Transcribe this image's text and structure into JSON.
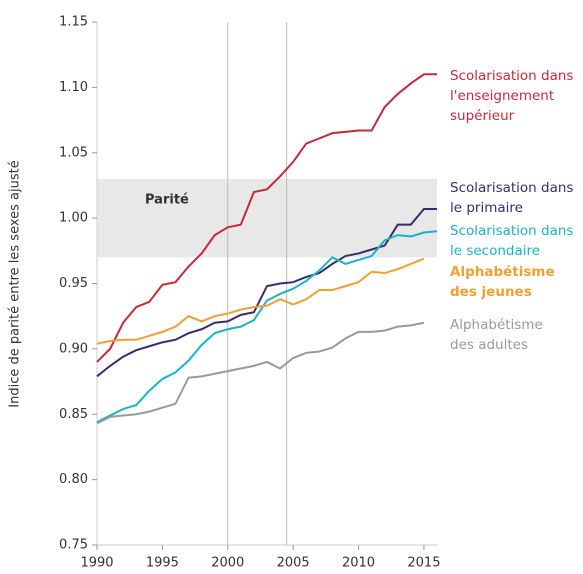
{
  "chart_data": {
    "type": "line",
    "y_label": "Indice de parité entre les sexes ajusté",
    "band": {
      "range": [
        0.97,
        1.03
      ],
      "label": "Parité",
      "color": "#e8e8e8"
    },
    "vlines": [
      2000,
      2004.5
    ],
    "x": [
      1990,
      1991,
      1992,
      1993,
      1994,
      1995,
      1996,
      1997,
      1998,
      1999,
      2000,
      2001,
      2002,
      2003,
      2004,
      2005,
      2006,
      2007,
      2008,
      2009,
      2010,
      2011,
      2012,
      2013,
      2014,
      2015,
      2016
    ],
    "xlim": [
      1990,
      2016
    ],
    "xticks": [
      1990,
      1995,
      2000,
      2005,
      2010,
      2015
    ],
    "ylim": [
      0.75,
      1.15
    ],
    "yticks": [
      {
        "value": 0.75,
        "label": "0.75"
      },
      {
        "value": 0.8,
        "label": "0.80"
      },
      {
        "value": 0.85,
        "label": "0.85"
      },
      {
        "value": 0.9,
        "label": "0.90"
      },
      {
        "value": 0.95,
        "label": "0.95"
      },
      {
        "value": 1.0,
        "label": "1.00"
      },
      {
        "value": 1.05,
        "label": "1.05"
      },
      {
        "value": 1.1,
        "label": "1.10"
      },
      {
        "value": 1.15,
        "label": "1.15"
      }
    ],
    "series": [
      {
        "name": "Scolarisation dans l'enseignement supérieur",
        "color": "#c8283c",
        "values": [
          0.89,
          0.9,
          0.92,
          0.932,
          0.936,
          0.949,
          0.951,
          0.963,
          0.973,
          0.987,
          0.993,
          0.995,
          1.02,
          1.022,
          1.032,
          1.043,
          1.057,
          1.061,
          1.065,
          1.066,
          1.067,
          1.067,
          1.085,
          1.095,
          1.103,
          1.11,
          1.11
        ]
      },
      {
        "name": "Scolarisation dans le primaire",
        "color": "#3d2a6e",
        "values": [
          0.879,
          0.887,
          0.894,
          0.899,
          0.902,
          0.905,
          0.907,
          0.912,
          0.915,
          0.92,
          0.921,
          0.926,
          0.928,
          0.948,
          0.95,
          0.951,
          0.955,
          0.958,
          0.965,
          0.971,
          0.973,
          0.976,
          0.979,
          0.995,
          0.995,
          1.007,
          1.007
        ]
      },
      {
        "name": "Scolarisation dans le secondaire",
        "color": "#1ab3c8",
        "values": [
          0.844,
          0.849,
          0.854,
          0.857,
          0.868,
          0.877,
          0.882,
          0.891,
          0.903,
          0.912,
          0.915,
          0.917,
          0.922,
          0.937,
          0.942,
          0.946,
          0.952,
          0.96,
          0.97,
          0.965,
          0.968,
          0.971,
          0.983,
          0.987,
          0.986,
          0.989,
          0.99
        ]
      },
      {
        "name": "Alphabétisme des jeunes",
        "color": "#f0a030",
        "values": [
          0.904,
          0.906,
          0.907,
          0.907,
          0.91,
          0.913,
          0.917,
          0.925,
          0.921,
          0.925,
          0.927,
          0.93,
          0.932,
          0.933,
          0.938,
          0.934,
          0.938,
          0.945,
          0.945,
          0.948,
          0.951,
          0.959,
          0.958,
          0.961,
          0.965,
          0.969,
          null
        ]
      },
      {
        "name": "Alphabétisme des adultes",
        "color": "#999999",
        "values": [
          0.843,
          0.848,
          0.849,
          0.85,
          0.852,
          0.855,
          0.858,
          0.878,
          0.879,
          0.881,
          0.883,
          0.885,
          0.887,
          0.89,
          0.885,
          0.893,
          0.897,
          0.898,
          0.901,
          0.908,
          0.913,
          0.913,
          0.914,
          0.917,
          0.918,
          0.92,
          null
        ]
      }
    ]
  }
}
